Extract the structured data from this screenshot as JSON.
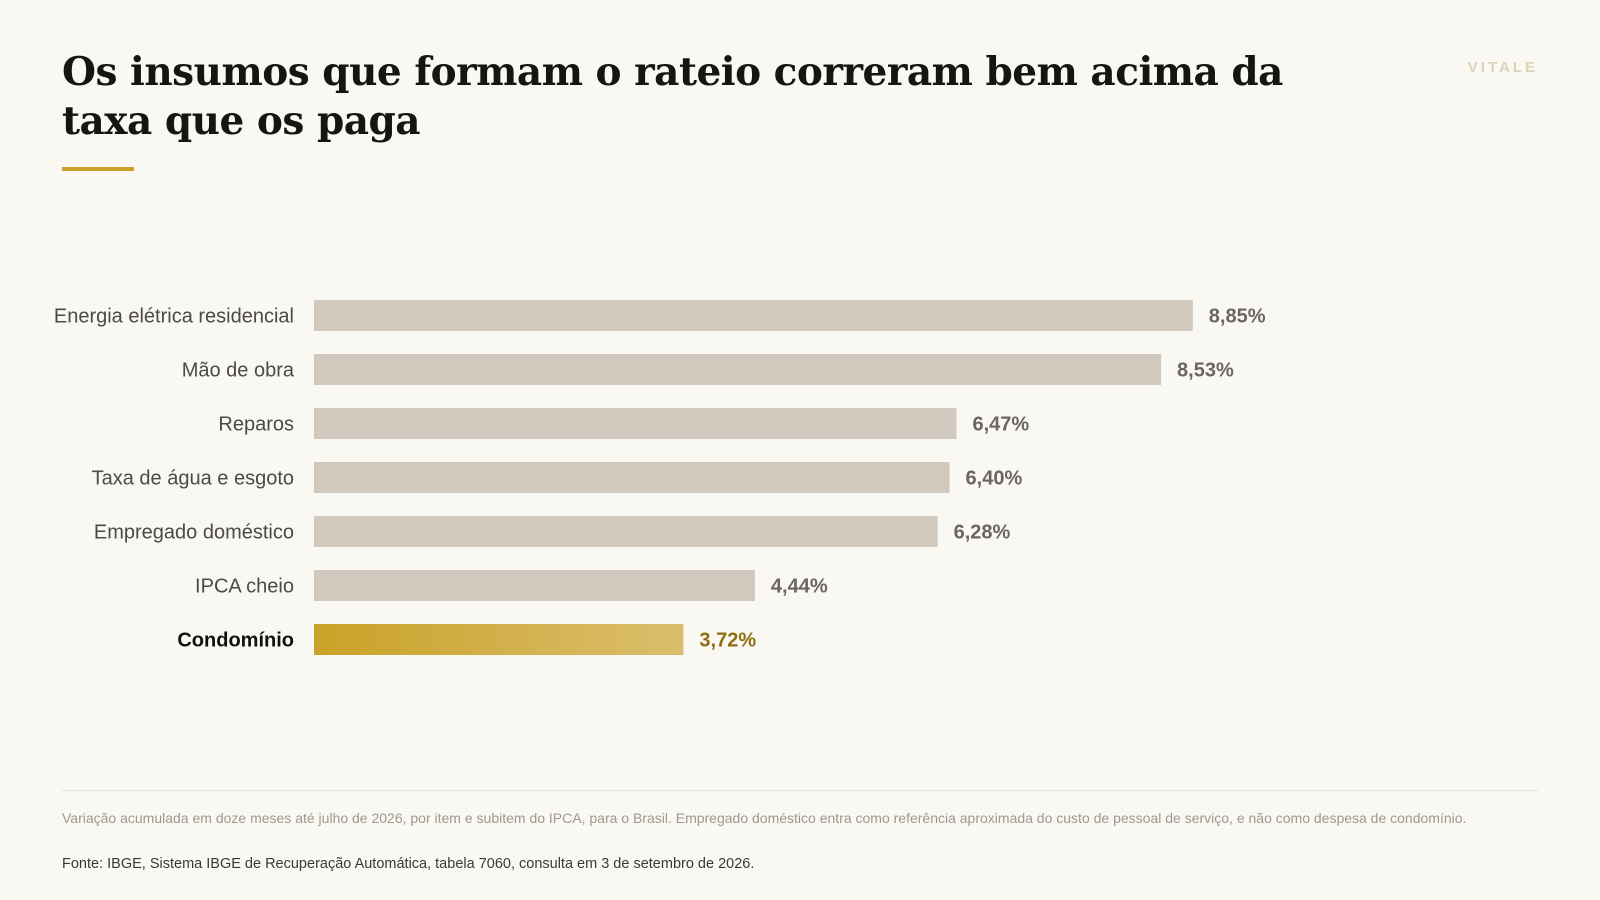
{
  "header": {
    "title": "Os insumos que formam o rateio correram bem acima da taxa que os paga",
    "brand": "VITALE"
  },
  "colors": {
    "background": "#f9f8f3",
    "bar": "#d1c9bd",
    "highlight_start": "#c9a227",
    "highlight_end": "#dbbe6d",
    "highlight_text": "#8f6e12"
  },
  "chart_data": {
    "type": "bar",
    "orientation": "horizontal",
    "categories": [
      "Energia elétrica residencial",
      "Mão de obra",
      "Reparos",
      "Taxa de água e esgoto",
      "Empregado doméstico",
      "IPCA cheio",
      "Condomínio"
    ],
    "values": [
      8.85,
      8.53,
      6.47,
      6.4,
      6.28,
      4.44,
      3.72
    ],
    "value_labels": [
      "8,85%",
      "8,53%",
      "6,47%",
      "6,40%",
      "6,28%",
      "4,44%",
      "3,72%"
    ],
    "highlight": "Condomínio",
    "title": "",
    "xlabel": "",
    "ylabel": "",
    "xlim": [
      0,
      10
    ],
    "grid": false,
    "legend": "none"
  },
  "footer": {
    "note": "Variação acumulada em doze meses até julho de 2026, por item e subitem do IPCA, para o Brasil. Empregado doméstico entra como referência aproximada do custo de pessoal de serviço, e não como despesa de condomínio.",
    "source": "Fonte: IBGE, Sistema IBGE de Recuperação Automática, tabela 7060, consulta em 3 de setembro de 2026."
  }
}
